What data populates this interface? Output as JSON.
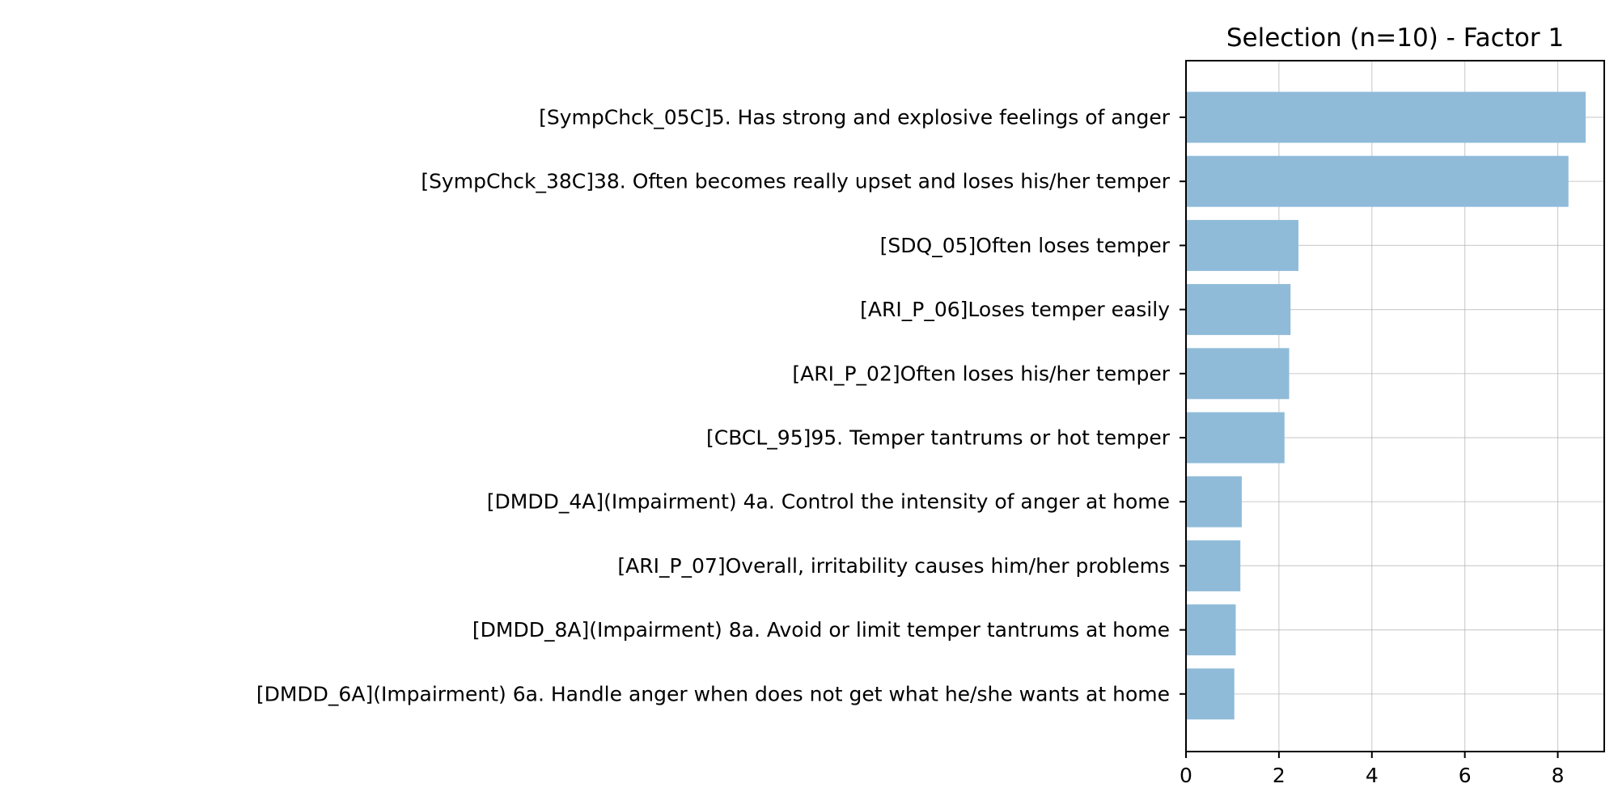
{
  "chart_data": {
    "type": "bar",
    "orientation": "horizontal",
    "title": "Selection (n=10) - Factor 1",
    "xlabel": "",
    "ylabel": "",
    "xlim": [
      0,
      9
    ],
    "xticks": [
      0,
      2,
      4,
      6,
      8
    ],
    "grid": true,
    "bar_color": "#8fbbd9",
    "categories": [
      "[SympChck_05C]5. Has strong and explosive feelings of anger",
      "[SympChck_38C]38. Often becomes really upset and loses his/her temper",
      "[SDQ_05]Often loses temper",
      "[ARI_P_06]Loses temper easily",
      "[ARI_P_02]Often loses his/her temper",
      "[CBCL_95]95. Temper tantrums or hot temper",
      "[DMDD_4A](Impairment) 4a. Control the intensity of anger at home",
      "[ARI_P_07]Overall, irritability causes him/her problems",
      "[DMDD_8A](Impairment) 8a. Avoid or limit temper tantrums at home",
      "[DMDD_6A](Impairment) 6a. Handle anger when does not get what he/she wants at home"
    ],
    "values": [
      8.6,
      8.23,
      2.42,
      2.25,
      2.22,
      2.12,
      1.2,
      1.17,
      1.07,
      1.04
    ]
  }
}
